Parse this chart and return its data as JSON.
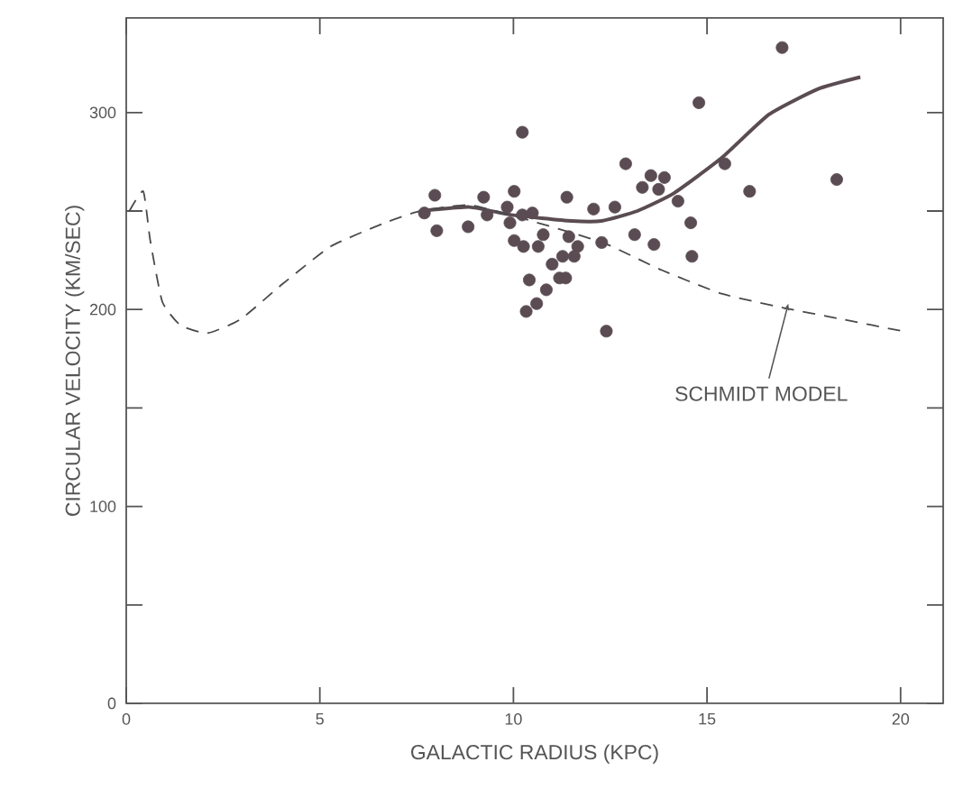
{
  "chart_data": {
    "type": "scatter",
    "xlabel": "GALACTIC RADIUS (KPC)",
    "ylabel": "CIRCULAR VELOCITY (KM/SEC)",
    "xlim": [
      0,
      21.1
    ],
    "ylim": [
      0,
      348
    ],
    "xticks": [
      0,
      5,
      10,
      15,
      20
    ],
    "yticks": [
      0,
      {
        "value": 50,
        "label": null
      },
      100,
      {
        "value": 150,
        "label": null
      },
      200,
      {
        "value": 250,
        "label": null
      },
      300
    ],
    "series": [
      {
        "marker": "circle",
        "color": "#5a4c52",
        "x": [
          7.7,
          7.97,
          8.02,
          8.83,
          9.23,
          9.32,
          9.84,
          9.91,
          10.02,
          10.23,
          10.49,
          10.23,
          10.02,
          10.26,
          10.77,
          10.64,
          11.38,
          11.43,
          11.0,
          11.27,
          11.66,
          11.57,
          10.41,
          11.19,
          11.35,
          10.85,
          10.6,
          10.33,
          12.07,
          12.28,
          12.4,
          12.62,
          12.9,
          13.13,
          13.33,
          13.55,
          13.9,
          13.75,
          13.63,
          14.25,
          14.58,
          14.61,
          14.79,
          15.46,
          16.1,
          16.94,
          18.35
        ],
        "values": [
          249,
          258,
          240,
          242,
          257,
          248,
          252,
          244,
          260,
          248,
          249,
          290,
          235,
          232,
          238,
          232,
          257,
          237,
          223,
          227,
          232,
          227,
          215,
          216,
          216,
          210,
          203,
          199,
          251,
          234,
          189,
          252,
          274,
          238,
          262,
          268,
          267,
          261,
          233,
          255,
          244,
          227,
          305,
          274,
          260,
          333,
          266
        ]
      },
      {
        "type": "line",
        "marker": "none",
        "line_style": "solid",
        "color": "#5a4c52",
        "x": [
          7.6,
          8.86,
          9.95,
          11.5,
          12.28,
          13.2,
          14.14,
          15.38,
          16.6,
          17.87,
          18.96
        ],
        "values": [
          250,
          252,
          248,
          245,
          245,
          250,
          259,
          277,
          299,
          312,
          318
        ]
      },
      {
        "type": "line",
        "marker": "none",
        "line_style": "dashed",
        "color": "#4a4a4a",
        "x": [
          0.08,
          0.44,
          0.62,
          0.93,
          1.4,
          2.1,
          2.95,
          4.04,
          5.28,
          6.68,
          7.6,
          8.86,
          10.1,
          11.5,
          12.43,
          13.83,
          15.38,
          16.94,
          18.5,
          20.05
        ],
        "values": [
          250,
          260,
          235,
          204,
          192,
          188,
          195,
          213,
          232,
          244,
          250,
          253,
          247,
          239,
          233,
          220,
          208,
          201,
          195,
          189
        ]
      }
    ],
    "annotations": [
      {
        "text": "SCHMIDT MODEL",
        "x": 17.1,
        "y": 203
      }
    ]
  }
}
